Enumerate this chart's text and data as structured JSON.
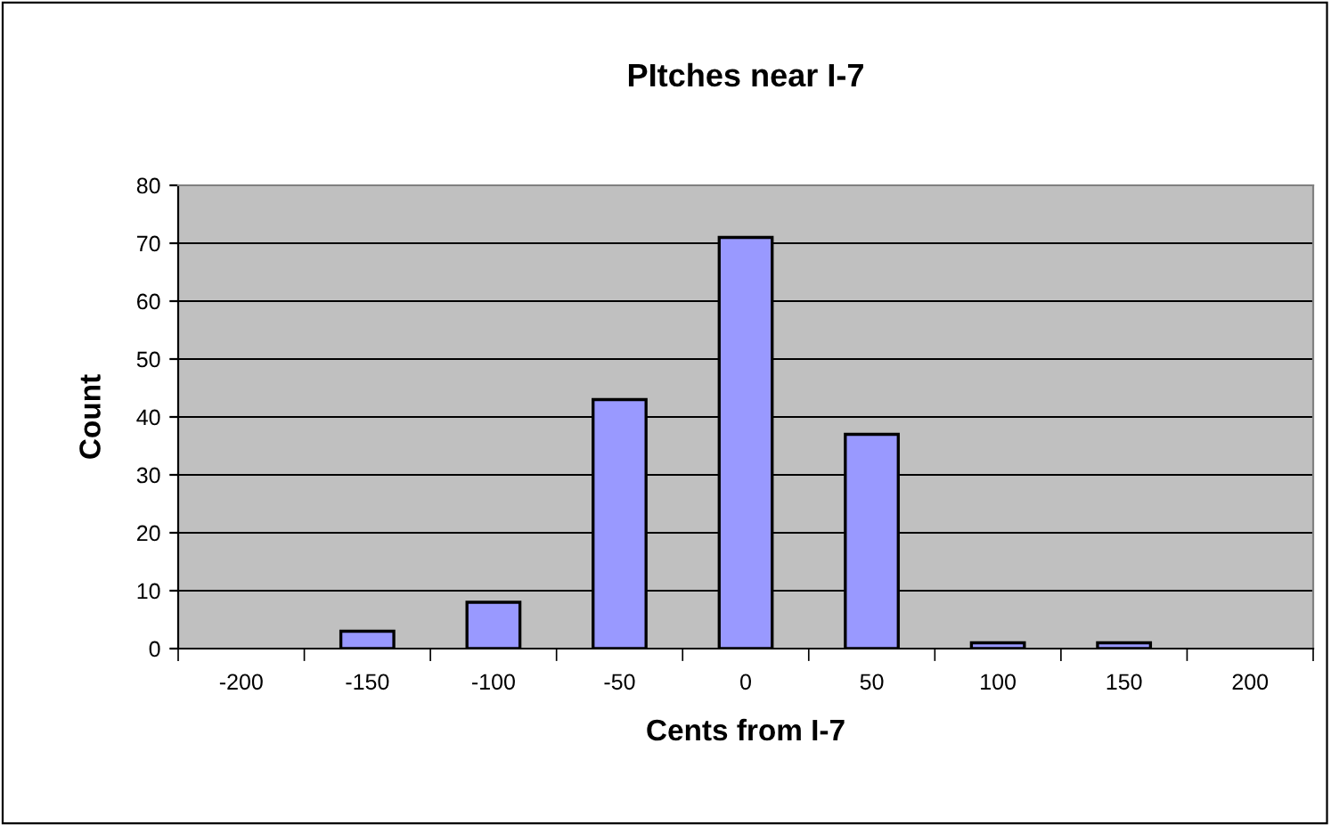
{
  "chart_data": {
    "type": "bar",
    "title": "PItches near I-7",
    "xlabel": "Cents from I-7",
    "ylabel": "Count",
    "categories": [
      "-200",
      "-150",
      "-100",
      "-50",
      "0",
      "50",
      "100",
      "150",
      "200"
    ],
    "values": [
      0,
      3,
      8,
      43,
      71,
      37,
      1,
      1,
      0
    ],
    "color": "#9999ff",
    "ylim": [
      0,
      80
    ],
    "yticks": [
      0,
      10,
      20,
      30,
      40,
      50,
      60,
      70,
      80
    ],
    "grid": "y",
    "legend": false
  }
}
